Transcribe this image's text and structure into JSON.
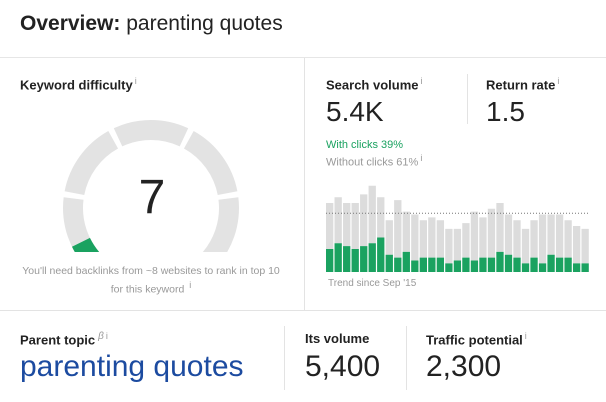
{
  "header": {
    "title_bold": "Overview:",
    "title_rest": "parenting quotes"
  },
  "keyword_difficulty": {
    "label": "Keyword difficulty",
    "info": "i",
    "value": "7",
    "level": 7,
    "max": 100,
    "note": "You'll need backlinks from ~8 websites to rank in top 10 for this keyword",
    "note_info": "i",
    "colors": {
      "track": "#e3e3e3",
      "fill": "#1aa260"
    }
  },
  "search_volume": {
    "label": "Search volume",
    "info": "i",
    "value": "5.4K",
    "with_clicks": "With clicks 39%",
    "without_clicks": "Without clicks 61%",
    "without_info": "i"
  },
  "return_rate": {
    "label": "Return rate",
    "info": "i",
    "value": "1.5"
  },
  "chart_data": {
    "type": "bar",
    "note": "Trend since Sep '15",
    "series": [
      {
        "name": "With clicks",
        "color": "#1aa260",
        "values": [
          8,
          10,
          9,
          8,
          9,
          10,
          12,
          6,
          5,
          7,
          4,
          5,
          5,
          5,
          3,
          4,
          5,
          4,
          5,
          5,
          7,
          6,
          5,
          3,
          5,
          3,
          6,
          5,
          5,
          3,
          3
        ]
      },
      {
        "name": "Without clicks",
        "color": "#dcdcdc",
        "values": [
          16,
          16,
          15,
          16,
          18,
          20,
          14,
          12,
          20,
          14,
          16,
          13,
          14,
          13,
          12,
          11,
          12,
          17,
          14,
          17,
          17,
          14,
          13,
          12,
          13,
          17,
          14,
          15,
          13,
          13,
          12
        ]
      }
    ],
    "average_line": true,
    "ylim": [
      0,
      32
    ]
  },
  "parent_topic": {
    "label": "Parent topic",
    "beta": "β",
    "info": "i",
    "value": "parenting quotes"
  },
  "its_volume": {
    "label": "Its volume",
    "value": "5,400"
  },
  "traffic_potential": {
    "label": "Traffic potential",
    "info": "i",
    "value": "2,300"
  }
}
